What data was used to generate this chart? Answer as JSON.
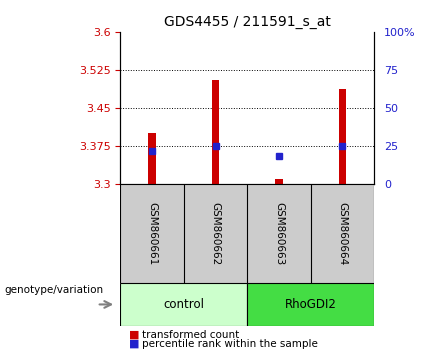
{
  "title": "GDS4455 / 211591_s_at",
  "samples": [
    "GSM860661",
    "GSM860662",
    "GSM860663",
    "GSM860664"
  ],
  "groups": [
    "control",
    "control",
    "RhoGDI2",
    "RhoGDI2"
  ],
  "bar_values": [
    3.4,
    3.505,
    3.31,
    3.488
  ],
  "bar_base": 3.3,
  "percentile_values": [
    3.365,
    3.375,
    3.355,
    3.375
  ],
  "left_yticks": [
    3.3,
    3.375,
    3.45,
    3.525,
    3.6
  ],
  "right_yticks": [
    0,
    25,
    50,
    75,
    100
  ],
  "ylim_min": 3.3,
  "ylim_max": 3.6,
  "bar_color": "#cc0000",
  "percentile_color": "#2222cc",
  "group_colors": {
    "control": "#ccffcc",
    "RhoGDI2": "#44dd44"
  },
  "group_label": "genotype/variation",
  "legend_items": [
    "transformed count",
    "percentile rank within the sample"
  ],
  "background_color": "#ffffff",
  "label_area_color": "#cccccc",
  "bar_width": 0.12
}
